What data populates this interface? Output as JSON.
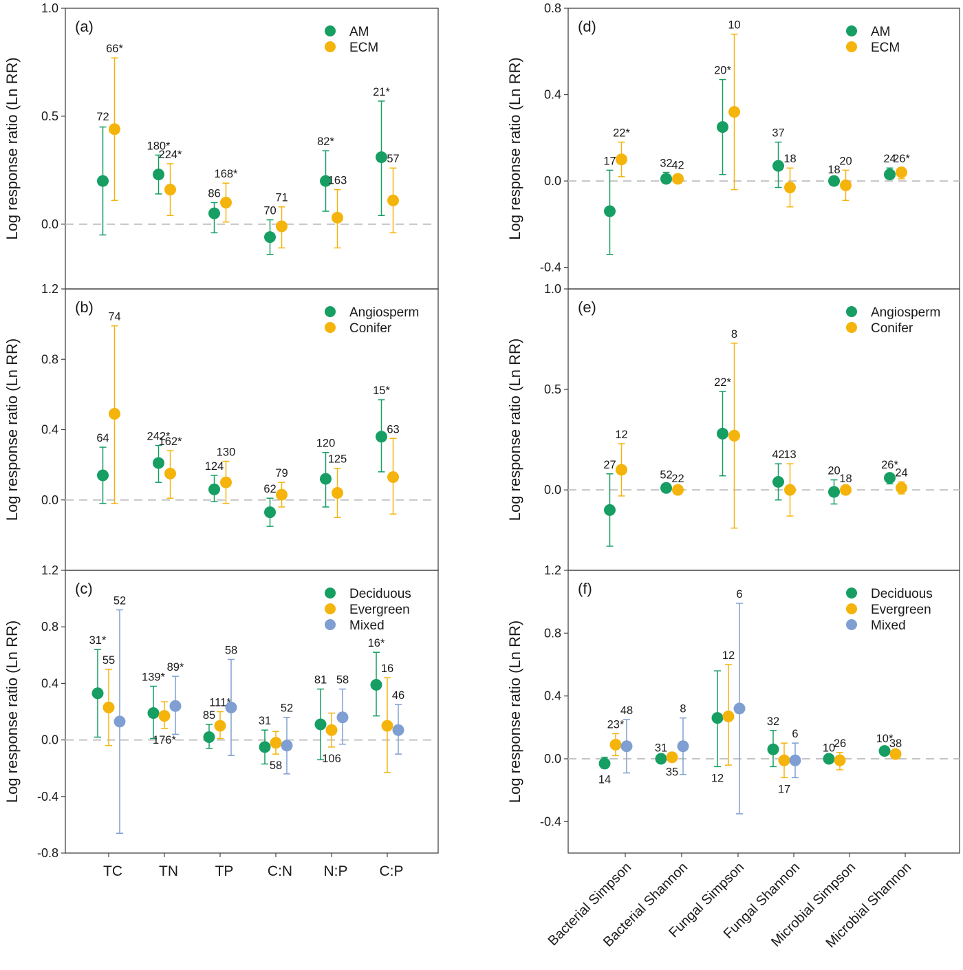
{
  "colors": {
    "green": "#169e63",
    "orange": "#f5b40b",
    "blue": "#7f9fd2",
    "reference_line": "#c4c4c4",
    "axis": "#444444"
  },
  "left_column": {
    "ylabel": "Log response ratio (Ln RR)",
    "categories": [
      "TC",
      "TN",
      "TP",
      "C:N",
      "N:P",
      "C:P"
    ]
  },
  "right_column": {
    "ylabel": "Log response ratio (Ln RR)",
    "categories": [
      "Bacterial Simpson",
      "Bacterial Shannon",
      "Fungal Simpson",
      "Fungal Shannon",
      "Microbial Simpson",
      "Microbial Shannon"
    ]
  },
  "chart_data": [
    {
      "panel": "(a)",
      "type": "scatter",
      "errorbars": true,
      "ylim": [
        -0.3,
        1.0
      ],
      "yticks": [
        0.0,
        0.5,
        1.0
      ],
      "categories": [
        "TC",
        "TN",
        "TP",
        "C:N",
        "N:P",
        "C:P"
      ],
      "reference_line": 0,
      "legend": "top-right",
      "series": [
        {
          "name": "AM",
          "color": "green",
          "values": [
            0.2,
            0.23,
            0.05,
            -0.06,
            0.2,
            0.31
          ],
          "lower": [
            -0.05,
            0.14,
            -0.04,
            -0.14,
            0.06,
            0.04
          ],
          "upper": [
            0.45,
            0.32,
            0.1,
            0.02,
            0.34,
            0.57
          ],
          "n": [
            "",
            "180*",
            "86",
            "70",
            "82*",
            "21*"
          ]
        },
        {
          "name": "ECM",
          "color": "orange",
          "values": [
            0.44,
            0.16,
            0.1,
            -0.01,
            0.03,
            0.11
          ],
          "lower": [
            0.11,
            0.04,
            0.01,
            -0.11,
            -0.11,
            -0.04
          ],
          "upper": [
            0.77,
            0.28,
            0.19,
            0.08,
            0.16,
            0.26
          ],
          "n": [
            "66*",
            "224*",
            "168*",
            "71",
            "163",
            "57"
          ]
        }
      ],
      "extra_labels": [
        {
          "text": "72",
          "x_index": 0,
          "y": 0.48
        }
      ]
    },
    {
      "panel": "(b)",
      "type": "scatter",
      "errorbars": true,
      "ylim": [
        -0.4,
        1.2
      ],
      "yticks": [
        0.0,
        0.4,
        0.8,
        1.2
      ],
      "categories": [
        "TC",
        "TN",
        "TP",
        "C:N",
        "N:P",
        "C:P"
      ],
      "reference_line": 0,
      "legend": "top-right",
      "series": [
        {
          "name": "Angiosperm",
          "color": "green",
          "values": [
            0.14,
            0.21,
            0.06,
            -0.07,
            0.12,
            0.36
          ],
          "lower": [
            -0.02,
            0.1,
            -0.01,
            -0.15,
            -0.04,
            0.16
          ],
          "upper": [
            0.3,
            0.31,
            0.14,
            0.01,
            0.27,
            0.57
          ],
          "n": [
            "64",
            "242*",
            "124",
            "62",
            "120",
            "15*"
          ]
        },
        {
          "name": "Conifer",
          "color": "orange",
          "values": [
            0.49,
            0.15,
            0.1,
            0.03,
            0.04,
            0.13
          ],
          "lower": [
            -0.02,
            0.01,
            -0.02,
            -0.04,
            -0.1,
            -0.08
          ],
          "upper": [
            0.99,
            0.28,
            0.22,
            0.1,
            0.18,
            0.35
          ],
          "n": [
            "74",
            "162*",
            "130",
            "79",
            "125",
            "63"
          ]
        }
      ]
    },
    {
      "panel": "(c)",
      "type": "scatter",
      "errorbars": true,
      "ylim": [
        -0.8,
        1.2
      ],
      "yticks": [
        -0.8,
        -0.4,
        0.0,
        0.4,
        0.8,
        1.2
      ],
      "categories": [
        "TC",
        "TN",
        "TP",
        "C:N",
        "N:P",
        "C:P"
      ],
      "reference_line": 0,
      "legend": "top-right",
      "series": [
        {
          "name": "Deciduous",
          "color": "green",
          "values": [
            0.33,
            0.19,
            0.02,
            -0.05,
            0.11,
            0.39
          ],
          "lower": [
            0.02,
            0.01,
            -0.06,
            -0.17,
            -0.14,
            0.17
          ],
          "upper": [
            0.64,
            0.38,
            0.11,
            0.07,
            0.36,
            0.62
          ],
          "n": [
            "31*",
            "139*",
            "85",
            "31",
            "81",
            "16*"
          ]
        },
        {
          "name": "Evergreen",
          "color": "orange",
          "values": [
            0.23,
            0.17,
            0.1,
            -0.02,
            0.07,
            0.1
          ],
          "lower": [
            -0.04,
            0.08,
            0.01,
            -0.1,
            -0.05,
            -0.23
          ],
          "upper": [
            0.5,
            0.27,
            0.2,
            0.06,
            0.19,
            0.44
          ],
          "n": [
            "55",
            "176*",
            "111*",
            "58",
            "106",
            "16"
          ]
        },
        {
          "name": "Mixed",
          "color": "blue",
          "values": [
            0.13,
            0.24,
            0.23,
            -0.04,
            0.16,
            0.07
          ],
          "lower": [
            -0.66,
            0.04,
            -0.11,
            -0.24,
            -0.03,
            -0.1
          ],
          "upper": [
            0.92,
            0.45,
            0.57,
            0.16,
            0.36,
            0.25
          ],
          "n": [
            "52",
            "89*",
            "58",
            "52",
            "58",
            "46"
          ]
        }
      ]
    },
    {
      "panel": "(d)",
      "type": "scatter",
      "errorbars": true,
      "ylim": [
        -0.5,
        0.8
      ],
      "yticks": [
        -0.4,
        0.0,
        0.4,
        0.8
      ],
      "categories": [
        "Bacterial Simpson",
        "Bacterial Shannon",
        "Fungal Simpson",
        "Fungal Shannon",
        "Microbial Simpson",
        "Microbial Shannon"
      ],
      "reference_line": 0,
      "legend": "top-right",
      "series": [
        {
          "name": "AM",
          "color": "green",
          "values": [
            -0.14,
            0.01,
            0.25,
            0.07,
            0.0,
            0.03
          ],
          "lower": [
            -0.34,
            -0.01,
            0.03,
            -0.03,
            -0.01,
            0.01
          ],
          "upper": [
            0.05,
            0.04,
            0.47,
            0.18,
            0.01,
            0.06
          ],
          "n": [
            "17",
            "32",
            "20*",
            "37",
            "18",
            "24"
          ]
        },
        {
          "name": "ECM",
          "color": "orange",
          "values": [
            0.1,
            0.01,
            0.32,
            -0.03,
            -0.02,
            0.04
          ],
          "lower": [
            0.02,
            -0.01,
            -0.04,
            -0.12,
            -0.09,
            0.01
          ],
          "upper": [
            0.18,
            0.03,
            0.68,
            0.06,
            0.05,
            0.06
          ],
          "n": [
            "22*",
            "42",
            "10",
            "18",
            "20",
            "26*"
          ]
        }
      ]
    },
    {
      "panel": "(e)",
      "type": "scatter",
      "errorbars": true,
      "ylim": [
        -0.4,
        1.0
      ],
      "yticks": [
        0.0,
        0.5,
        1.0
      ],
      "categories": [
        "Bacterial Simpson",
        "Bacterial Shannon",
        "Fungal Simpson",
        "Fungal Shannon",
        "Microbial Simpson",
        "Microbial Shannon"
      ],
      "reference_line": 0,
      "legend": "top-right",
      "series": [
        {
          "name": "Angiosperm",
          "color": "green",
          "values": [
            -0.1,
            0.01,
            0.28,
            0.04,
            -0.01,
            0.06
          ],
          "lower": [
            -0.28,
            -0.01,
            0.07,
            -0.05,
            -0.07,
            0.03
          ],
          "upper": [
            0.08,
            0.03,
            0.49,
            0.13,
            0.05,
            0.08
          ],
          "n": [
            "27",
            "52",
            "22*",
            "42",
            "20",
            "26*"
          ]
        },
        {
          "name": "Conifer",
          "color": "orange",
          "values": [
            0.1,
            0.0,
            0.27,
            0.0,
            0.0,
            0.01
          ],
          "lower": [
            -0.03,
            -0.01,
            -0.19,
            -0.13,
            -0.01,
            -0.02
          ],
          "upper": [
            0.23,
            0.01,
            0.73,
            0.13,
            0.01,
            0.04
          ],
          "n": [
            "12",
            "22",
            "8",
            "13",
            "18",
            "24"
          ]
        }
      ]
    },
    {
      "panel": "(f)",
      "type": "scatter",
      "errorbars": true,
      "ylim": [
        -0.6,
        1.2
      ],
      "yticks": [
        -0.4,
        0.0,
        0.4,
        0.8,
        1.2
      ],
      "categories": [
        "Bacterial Simpson",
        "Bacterial Shannon",
        "Fungal Simpson",
        "Fungal Shannon",
        "Microbial Simpson",
        "Microbial Shannon"
      ],
      "reference_line": 0,
      "legend": "top-right",
      "series": [
        {
          "name": "Deciduous",
          "color": "green",
          "values": [
            -0.03,
            0.0,
            0.26,
            0.06,
            0.0,
            0.05
          ],
          "lower": [
            -0.06,
            -0.01,
            -0.05,
            -0.05,
            -0.01,
            0.03
          ],
          "upper": [
            0.01,
            0.01,
            0.56,
            0.18,
            0.01,
            0.07
          ],
          "n": [
            "14",
            "31",
            "12",
            "32",
            "10",
            "10*"
          ]
        },
        {
          "name": "Evergreen",
          "color": "orange",
          "values": [
            0.09,
            0.01,
            0.27,
            -0.01,
            -0.01,
            0.03
          ],
          "lower": [
            0.02,
            -0.01,
            -0.04,
            -0.12,
            -0.07,
            0.02
          ],
          "upper": [
            0.16,
            0.03,
            0.6,
            0.1,
            0.04,
            0.04
          ],
          "n": [
            "23*",
            "35",
            "12",
            "17",
            "26",
            "38"
          ]
        },
        {
          "name": "Mixed",
          "color": "blue",
          "values": [
            0.08,
            0.08,
            0.32,
            -0.01
          ],
          "lower": [
            -0.09,
            -0.1,
            -0.35,
            -0.12
          ],
          "upper": [
            0.25,
            0.26,
            0.99,
            0.1
          ],
          "n": [
            "48",
            "8",
            "6",
            "6"
          ]
        }
      ]
    }
  ]
}
